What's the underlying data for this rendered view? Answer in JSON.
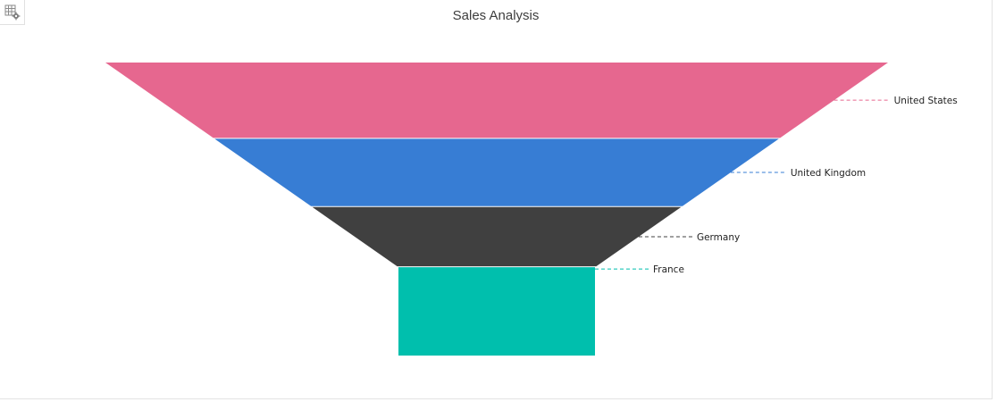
{
  "toolbar": {
    "settings_icon": "table-settings-icon"
  },
  "chart_data": {
    "type": "funnel",
    "title": "Sales Analysis",
    "categories": [
      "United States",
      "United Kingdom",
      "Germany",
      "France"
    ],
    "values": [
      95,
      85,
      75,
      110
    ],
    "colors": [
      "#e6678f",
      "#377dd4",
      "#404040",
      "#00bfad"
    ],
    "neck": true,
    "legend": "none",
    "labels": "outside-right-with-dashed-connectors"
  }
}
